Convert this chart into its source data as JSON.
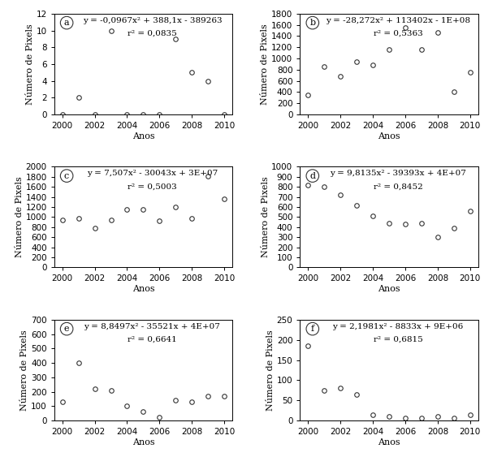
{
  "panels": [
    {
      "label": "a",
      "x": [
        2000,
        2001,
        2002,
        2003,
        2004,
        2005,
        2006,
        2007,
        2008,
        2009,
        2010
      ],
      "y": [
        0,
        2,
        0,
        10,
        0,
        0,
        0,
        9,
        5,
        4,
        0
      ],
      "eq": "y = -0,0967x² + 388,1x - 389263",
      "r2": "r² = 0,0835",
      "ylim": [
        0,
        12
      ],
      "yticks": [
        0,
        2,
        4,
        6,
        8,
        10,
        12
      ],
      "poly": [
        -0.0967,
        388.1,
        -389263
      ]
    },
    {
      "label": "b",
      "x": [
        2000,
        2001,
        2002,
        2003,
        2004,
        2005,
        2006,
        2007,
        2008,
        2009,
        2010
      ],
      "y": [
        350,
        860,
        680,
        940,
        880,
        1160,
        1550,
        1160,
        1470,
        400,
        760
      ],
      "eq": "y = -28,272x² + 113402x - 1E+08",
      "r2": "r² = 0,5363",
      "ylim": [
        0,
        1800
      ],
      "yticks": [
        0,
        200,
        400,
        600,
        800,
        1000,
        1200,
        1400,
        1600,
        1800
      ],
      "poly": [
        -28.272,
        113402,
        -100000000
      ]
    },
    {
      "label": "c",
      "x": [
        2000,
        2001,
        2002,
        2003,
        2004,
        2005,
        2006,
        2007,
        2008,
        2009,
        2010
      ],
      "y": [
        940,
        980,
        780,
        950,
        1150,
        1150,
        930,
        1200,
        970,
        1820,
        1360
      ],
      "eq": "y = 7,507x² - 30043x + 3E+07",
      "r2": "r² = 0,5003",
      "ylim": [
        0,
        2000
      ],
      "yticks": [
        0,
        200,
        400,
        600,
        800,
        1000,
        1200,
        1400,
        1600,
        1800,
        2000
      ],
      "poly": [
        7.507,
        -30043,
        30000000
      ]
    },
    {
      "label": "d",
      "x": [
        2000,
        2001,
        2002,
        2003,
        2004,
        2005,
        2006,
        2007,
        2008,
        2009,
        2010
      ],
      "y": [
        820,
        800,
        720,
        620,
        510,
        440,
        430,
        440,
        300,
        390,
        560
      ],
      "eq": "y = 9,8135x² - 39393x + 4E+07",
      "r2": "r² = 0,8452",
      "ylim": [
        0,
        1000
      ],
      "yticks": [
        0,
        100,
        200,
        300,
        400,
        500,
        600,
        700,
        800,
        900,
        1000
      ],
      "poly": [
        9.8135,
        -39393,
        39500000
      ]
    },
    {
      "label": "e",
      "x": [
        2000,
        2001,
        2002,
        2003,
        2004,
        2005,
        2006,
        2007,
        2008,
        2009,
        2010
      ],
      "y": [
        130,
        400,
        220,
        210,
        100,
        60,
        20,
        140,
        130,
        170,
        170
      ],
      "eq": "y = 8,8497x² - 35521x + 4E+07",
      "r2": "r² = 0,6641",
      "ylim": [
        0,
        700
      ],
      "yticks": [
        0,
        100,
        200,
        300,
        400,
        500,
        600,
        700
      ],
      "poly": [
        8.8497,
        -35521,
        35600000
      ]
    },
    {
      "label": "f",
      "x": [
        2000,
        2001,
        2002,
        2003,
        2004,
        2005,
        2006,
        2007,
        2008,
        2009,
        2010
      ],
      "y": [
        185,
        75,
        80,
        65,
        15,
        10,
        5,
        5,
        10,
        5,
        15
      ],
      "eq": "y = 2,1981x² - 8833x + 9E+06",
      "r2": "r² = 0,6815",
      "ylim": [
        0,
        250
      ],
      "yticks": [
        0,
        50,
        100,
        150,
        200,
        250
      ],
      "poly": [
        2.1981,
        -8833,
        8870000
      ]
    }
  ],
  "xlabel": "Anos",
  "ylabel": "Número de Pixels",
  "xticks": [
    2000,
    2002,
    2004,
    2006,
    2008,
    2010
  ],
  "bg_color": "#ffffff",
  "marker": "o",
  "marker_size": 4,
  "marker_facecolor": "none",
  "marker_edgecolor": "#333333",
  "line_color": "#555555",
  "line_style": ":",
  "line_width": 1.5,
  "eq_fontsize": 7.5,
  "label_fontsize": 8,
  "tick_fontsize": 7.5
}
